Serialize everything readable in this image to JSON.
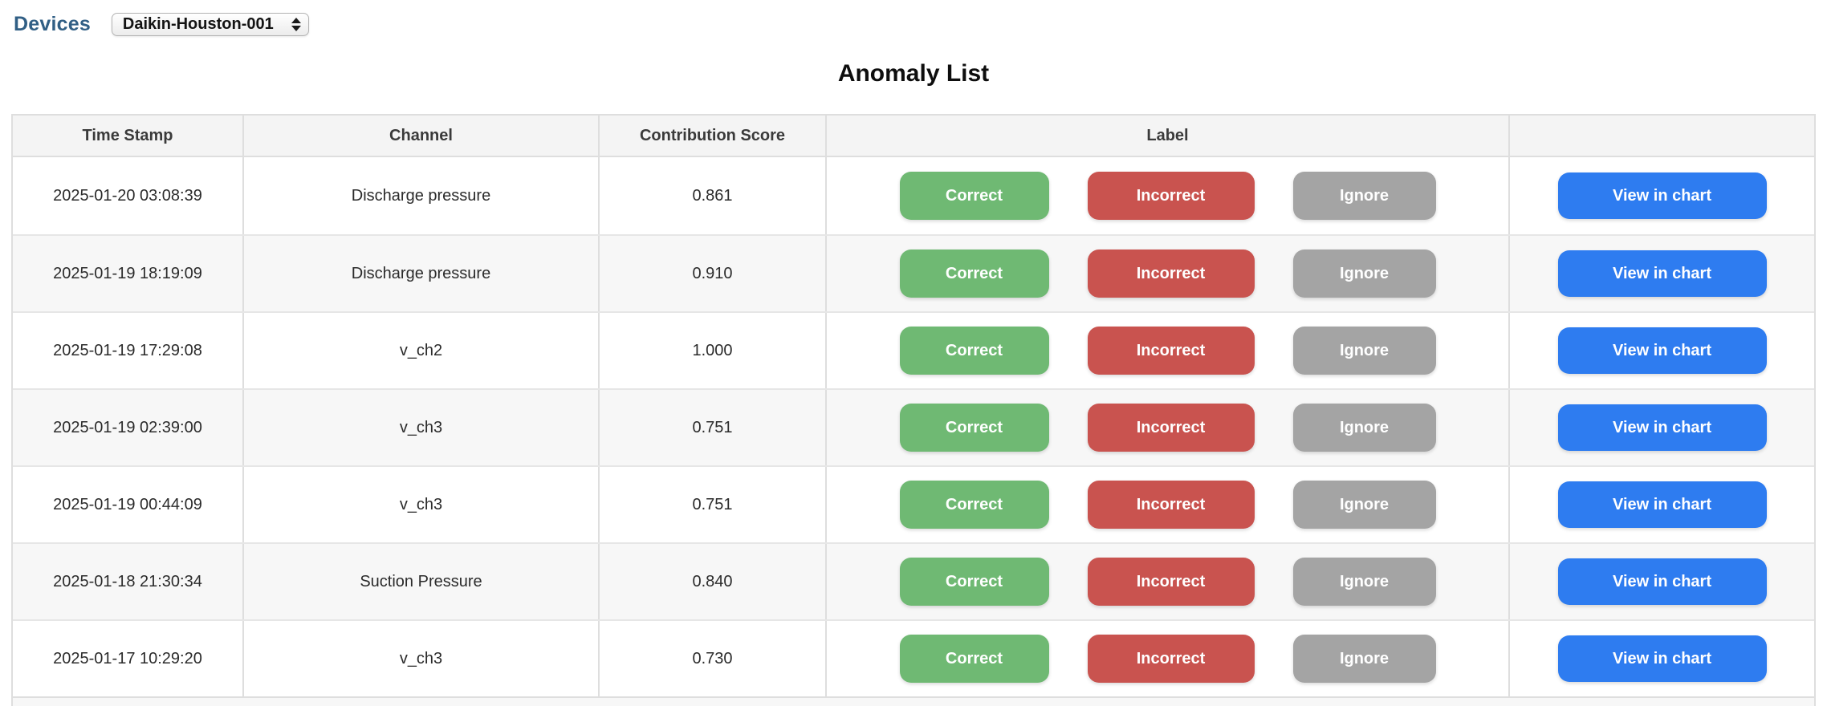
{
  "toolbar": {
    "devices_label": "Devices",
    "device_select": {
      "value": "Daikin-Houston-001"
    }
  },
  "page": {
    "title": "Anomaly List"
  },
  "table": {
    "columns": [
      "Time Stamp",
      "Channel",
      "Contribution Score",
      "Label",
      ""
    ],
    "action_buttons": {
      "correct": "Correct",
      "incorrect": "Incorrect",
      "ignore": "Ignore",
      "view_in_chart": "View in chart"
    },
    "rows": [
      {
        "timestamp": "2025-01-20 03:08:39",
        "channel": "Discharge pressure",
        "score": "0.861"
      },
      {
        "timestamp": "2025-01-19 18:19:09",
        "channel": "Discharge pressure",
        "score": "0.910"
      },
      {
        "timestamp": "2025-01-19 17:29:08",
        "channel": "v_ch2",
        "score": "1.000"
      },
      {
        "timestamp": "2025-01-19 02:39:00",
        "channel": "v_ch3",
        "score": "0.751"
      },
      {
        "timestamp": "2025-01-19 00:44:09",
        "channel": "v_ch3",
        "score": "0.751"
      },
      {
        "timestamp": "2025-01-18 21:30:34",
        "channel": "Suction Pressure",
        "score": "0.840"
      },
      {
        "timestamp": "2025-01-17 10:29:20",
        "channel": "v_ch3",
        "score": "0.730"
      }
    ]
  },
  "colors": {
    "devices-label": "#315f85",
    "correct-green": "#6fb973",
    "incorrect-red": "#c9534f",
    "ignore-gray": "#a4a4a4",
    "view-blue": "#2e7cf0",
    "header-bg": "#f4f4f4",
    "stripe-bg": "#f7f7f7",
    "border": "#dedede"
  }
}
